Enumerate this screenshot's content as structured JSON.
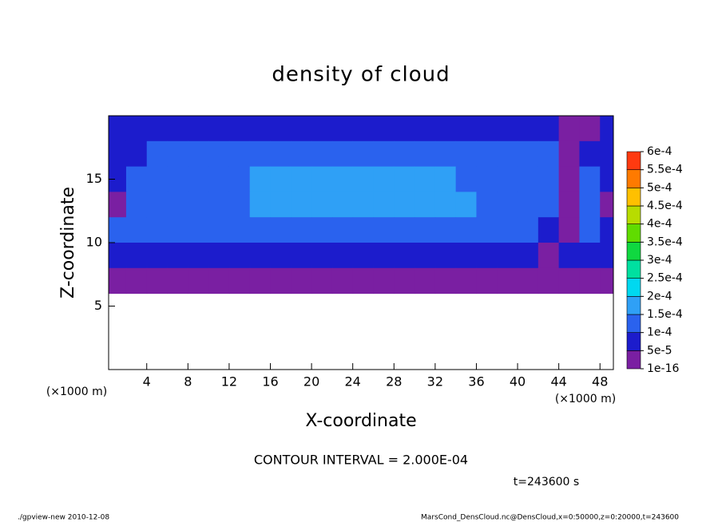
{
  "chart_data": {
    "type": "contour",
    "title": "density of cloud",
    "x_label": "X-coordinate",
    "y_label": "Z-coordinate",
    "x_unit": "(×1000 m)",
    "y_unit": "(×1000 m)",
    "contour_interval": "CONTOUR INTERVAL = 2.000E-04",
    "time_label": "t=243600 s",
    "footer_left": "./gpview-new  2010-12-08",
    "footer_right": "MarsCond_DensCloud.nc@DensCloud,x=0:50000,z=0:20000,t=243600",
    "xlim": [
      0.3,
      49.3
    ],
    "ylim": [
      0,
      20
    ],
    "xticks": [
      4,
      8,
      12,
      16,
      20,
      24,
      28,
      32,
      36,
      40,
      44,
      48
    ],
    "yticks": [
      5,
      10,
      15
    ],
    "x": [
      1,
      3,
      5,
      7,
      9,
      11,
      13,
      15,
      17,
      19,
      21,
      23,
      25,
      27,
      29,
      31,
      33,
      35,
      37,
      39,
      41,
      43,
      45,
      47,
      49
    ],
    "y": [
      19,
      17,
      15,
      13,
      11,
      9,
      7,
      5,
      3,
      1
    ],
    "cell_size": 2,
    "levels": [
      {
        "value": 1e-16,
        "label": "1e-16"
      },
      {
        "value": 5e-05,
        "label": "5e-5"
      },
      {
        "value": 0.0001,
        "label": "1e-4"
      },
      {
        "value": 0.00015,
        "label": "1.5e-4"
      },
      {
        "value": 0.0002,
        "label": "2e-4"
      },
      {
        "value": 0.00025,
        "label": "2.5e-4"
      },
      {
        "value": 0.0003,
        "label": "3e-4"
      },
      {
        "value": 0.00035,
        "label": "3.5e-4"
      },
      {
        "value": 0.0004,
        "label": "4e-4"
      },
      {
        "value": 0.00045,
        "label": "4.5e-4"
      },
      {
        "value": 0.0005,
        "label": "5e-4"
      },
      {
        "value": 0.00055,
        "label": "5.5e-4"
      },
      {
        "value": 0.0006,
        "label": "6e-4"
      }
    ],
    "colors": [
      "#7a1fa2",
      "#1c1ccc",
      "#2a62ee",
      "#2fa0f6",
      "#00d8f0",
      "#00e0a0",
      "#10d840",
      "#60dc00",
      "#b8dc00",
      "#ffc000",
      "#ff7a00",
      "#ff3a10",
      "#ff8a8a"
    ],
    "z": [
      [
        5e-05,
        5e-05,
        6e-05,
        6e-05,
        6e-05,
        6e-05,
        6e-05,
        6e-05,
        6e-05,
        6e-05,
        6e-05,
        6e-05,
        6e-05,
        6e-05,
        6e-05,
        6e-05,
        6e-05,
        6e-05,
        6e-05,
        6e-05,
        6e-05,
        6e-05,
        3e-05,
        3e-05,
        6e-05
      ],
      [
        9e-05,
        9e-05,
        0.00011,
        0.00011,
        0.00011,
        0.00011,
        0.00011,
        0.00011,
        0.00011,
        0.00011,
        0.00011,
        0.00011,
        0.00011,
        0.00011,
        0.00011,
        0.00011,
        0.00011,
        0.00011,
        0.00011,
        0.00011,
        0.00011,
        0.00011,
        4e-05,
        8e-05,
        8e-05
      ],
      [
        9e-05,
        0.00011,
        0.00013,
        0.00013,
        0.00013,
        0.00013,
        0.00013,
        0.000155,
        0.000155,
        0.000155,
        0.000155,
        0.000155,
        0.000155,
        0.000155,
        0.000155,
        0.000155,
        0.000155,
        0.00013,
        0.00013,
        0.00013,
        0.00013,
        0.00011,
        4e-05,
        0.00011,
        8e-05
      ],
      [
        4e-05,
        0.00011,
        0.00011,
        0.00011,
        0.00011,
        0.00013,
        0.00013,
        0.000155,
        0.000155,
        0.000155,
        0.000155,
        0.000155,
        0.000155,
        0.000155,
        0.000155,
        0.000155,
        0.000155,
        0.000155,
        0.00013,
        0.00013,
        0.00013,
        0.00011,
        3e-05,
        0.00011,
        4e-05
      ],
      [
        0.000105,
        0.000105,
        0.000105,
        0.000105,
        0.000105,
        0.000105,
        0.000105,
        0.000105,
        0.000105,
        0.000105,
        0.000105,
        0.000105,
        0.000105,
        0.000105,
        0.000105,
        0.000105,
        0.000105,
        0.000105,
        0.000105,
        0.000105,
        0.000105,
        9e-05,
        3e-05,
        0.00011,
        9e-05
      ],
      [
        7e-05,
        7e-05,
        7e-05,
        7e-05,
        7e-05,
        7e-05,
        7e-05,
        7e-05,
        7e-05,
        7e-05,
        7e-05,
        7e-05,
        7e-05,
        7e-05,
        7e-05,
        7e-05,
        7e-05,
        7e-05,
        7e-05,
        7e-05,
        7e-05,
        3e-05,
        7e-05,
        7e-05,
        7e-05
      ],
      [
        3e-05,
        3e-05,
        3e-05,
        3e-05,
        3e-05,
        3e-05,
        3e-05,
        3e-05,
        3e-05,
        3e-05,
        3e-05,
        3e-05,
        3e-05,
        3e-05,
        3e-05,
        3e-05,
        3e-05,
        3e-05,
        3e-05,
        3e-05,
        3e-05,
        3e-05,
        3e-05,
        3e-05,
        3e-05
      ],
      [
        null,
        null,
        null,
        null,
        null,
        null,
        null,
        null,
        null,
        null,
        null,
        null,
        null,
        null,
        null,
        null,
        null,
        null,
        null,
        null,
        null,
        null,
        null,
        null,
        null
      ],
      [
        null,
        null,
        null,
        null,
        null,
        null,
        null,
        null,
        null,
        null,
        null,
        null,
        null,
        null,
        null,
        null,
        null,
        null,
        null,
        null,
        null,
        null,
        null,
        null,
        null
      ],
      [
        null,
        null,
        null,
        null,
        null,
        null,
        null,
        null,
        null,
        null,
        null,
        null,
        null,
        null,
        null,
        null,
        null,
        null,
        null,
        null,
        null,
        null,
        null,
        null,
        null
      ]
    ]
  }
}
